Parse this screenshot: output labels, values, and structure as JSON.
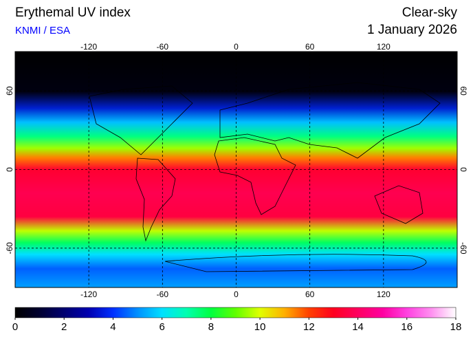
{
  "header": {
    "title": "Erythemal UV index",
    "source": "KNMI / ESA",
    "condition": "Clear-sky",
    "date": "1 January 2026"
  },
  "map": {
    "lon_range": [
      -180,
      180
    ],
    "lat_range": [
      90,
      -90
    ],
    "lon_ticks": [
      -120,
      -60,
      0,
      60,
      120
    ],
    "lat_ticks": [
      60,
      0,
      -60
    ]
  },
  "colorbar": {
    "range": [
      0,
      18
    ],
    "ticks": [
      0,
      2,
      4,
      6,
      8,
      10,
      12,
      14,
      16,
      18
    ],
    "colors": [
      "#000000",
      "#000030",
      "#000070",
      "#0000b0",
      "#0030ff",
      "#0090ff",
      "#00e0ff",
      "#00ffb0",
      "#00ff40",
      "#60ff00",
      "#e0ff00",
      "#ffb000",
      "#ff4000",
      "#ff0020",
      "#ff0060",
      "#ff00a0",
      "#ff40e0",
      "#ff90f0",
      "#ffffff"
    ]
  }
}
